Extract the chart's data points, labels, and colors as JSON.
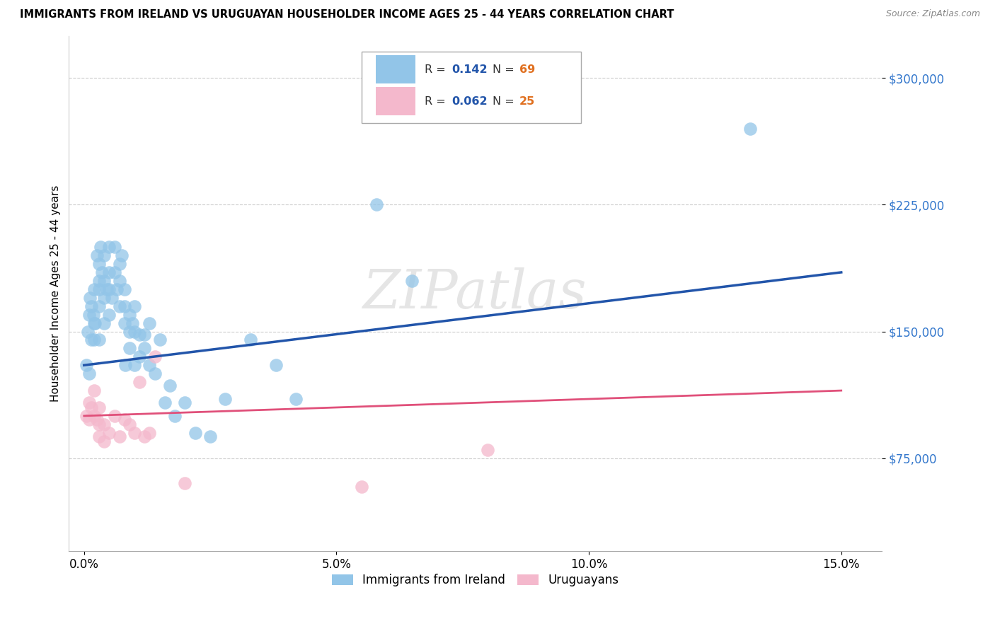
{
  "title": "IMMIGRANTS FROM IRELAND VS URUGUAYAN HOUSEHOLDER INCOME AGES 25 - 44 YEARS CORRELATION CHART",
  "source": "Source: ZipAtlas.com",
  "ylabel": "Householder Income Ages 25 - 44 years",
  "xlabel_ticks": [
    "0.0%",
    "5.0%",
    "10.0%",
    "15.0%"
  ],
  "xlabel_vals": [
    0.0,
    0.05,
    0.1,
    0.15
  ],
  "ytick_labels": [
    "$75,000",
    "$150,000",
    "$225,000",
    "$300,000"
  ],
  "ytick_vals": [
    75000,
    150000,
    225000,
    300000
  ],
  "xlim": [
    -0.003,
    0.158
  ],
  "ylim": [
    20000,
    325000
  ],
  "legend_blue_r": "0.142",
  "legend_blue_n": "69",
  "legend_pink_r": "0.062",
  "legend_pink_n": "25",
  "legend_label_blue": "Immigrants from Ireland",
  "legend_label_pink": "Uruguayans",
  "blue_color": "#92c5e8",
  "pink_color": "#f4b8cc",
  "line_blue_color": "#2255aa",
  "line_pink_color": "#e0507a",
  "watermark": "ZIPatlas",
  "blue_line_x0": 0.0,
  "blue_line_y0": 130000,
  "blue_line_x1": 0.15,
  "blue_line_y1": 185000,
  "pink_line_x0": 0.0,
  "pink_line_y0": 100000,
  "pink_line_x1": 0.15,
  "pink_line_y1": 115000,
  "blue_x": [
    0.0005,
    0.0008,
    0.001,
    0.001,
    0.0012,
    0.0015,
    0.0015,
    0.0018,
    0.002,
    0.002,
    0.002,
    0.0022,
    0.0025,
    0.003,
    0.003,
    0.003,
    0.003,
    0.003,
    0.0032,
    0.0035,
    0.004,
    0.004,
    0.004,
    0.004,
    0.0045,
    0.005,
    0.005,
    0.005,
    0.005,
    0.0055,
    0.006,
    0.006,
    0.0065,
    0.007,
    0.007,
    0.007,
    0.0075,
    0.008,
    0.008,
    0.008,
    0.0082,
    0.009,
    0.009,
    0.009,
    0.0095,
    0.01,
    0.01,
    0.01,
    0.011,
    0.011,
    0.012,
    0.012,
    0.013,
    0.013,
    0.014,
    0.015,
    0.016,
    0.017,
    0.018,
    0.02,
    0.022,
    0.025,
    0.028,
    0.033,
    0.038,
    0.042,
    0.058,
    0.065,
    0.132
  ],
  "blue_y": [
    130000,
    150000,
    160000,
    125000,
    170000,
    165000,
    145000,
    160000,
    155000,
    175000,
    145000,
    155000,
    195000,
    190000,
    180000,
    175000,
    165000,
    145000,
    200000,
    185000,
    195000,
    180000,
    170000,
    155000,
    175000,
    200000,
    185000,
    175000,
    160000,
    170000,
    185000,
    200000,
    175000,
    190000,
    180000,
    165000,
    195000,
    175000,
    165000,
    155000,
    130000,
    160000,
    150000,
    140000,
    155000,
    165000,
    150000,
    130000,
    148000,
    135000,
    148000,
    140000,
    130000,
    155000,
    125000,
    145000,
    108000,
    118000,
    100000,
    108000,
    90000,
    88000,
    110000,
    145000,
    130000,
    110000,
    225000,
    180000,
    270000
  ],
  "pink_x": [
    0.0005,
    0.001,
    0.001,
    0.0015,
    0.002,
    0.002,
    0.0025,
    0.003,
    0.003,
    0.003,
    0.004,
    0.004,
    0.005,
    0.006,
    0.007,
    0.008,
    0.009,
    0.01,
    0.011,
    0.012,
    0.013,
    0.014,
    0.02,
    0.055,
    0.08
  ],
  "pink_y": [
    100000,
    108000,
    98000,
    105000,
    115000,
    100000,
    98000,
    105000,
    95000,
    88000,
    95000,
    85000,
    90000,
    100000,
    88000,
    98000,
    95000,
    90000,
    120000,
    88000,
    90000,
    135000,
    60000,
    58000,
    80000
  ]
}
